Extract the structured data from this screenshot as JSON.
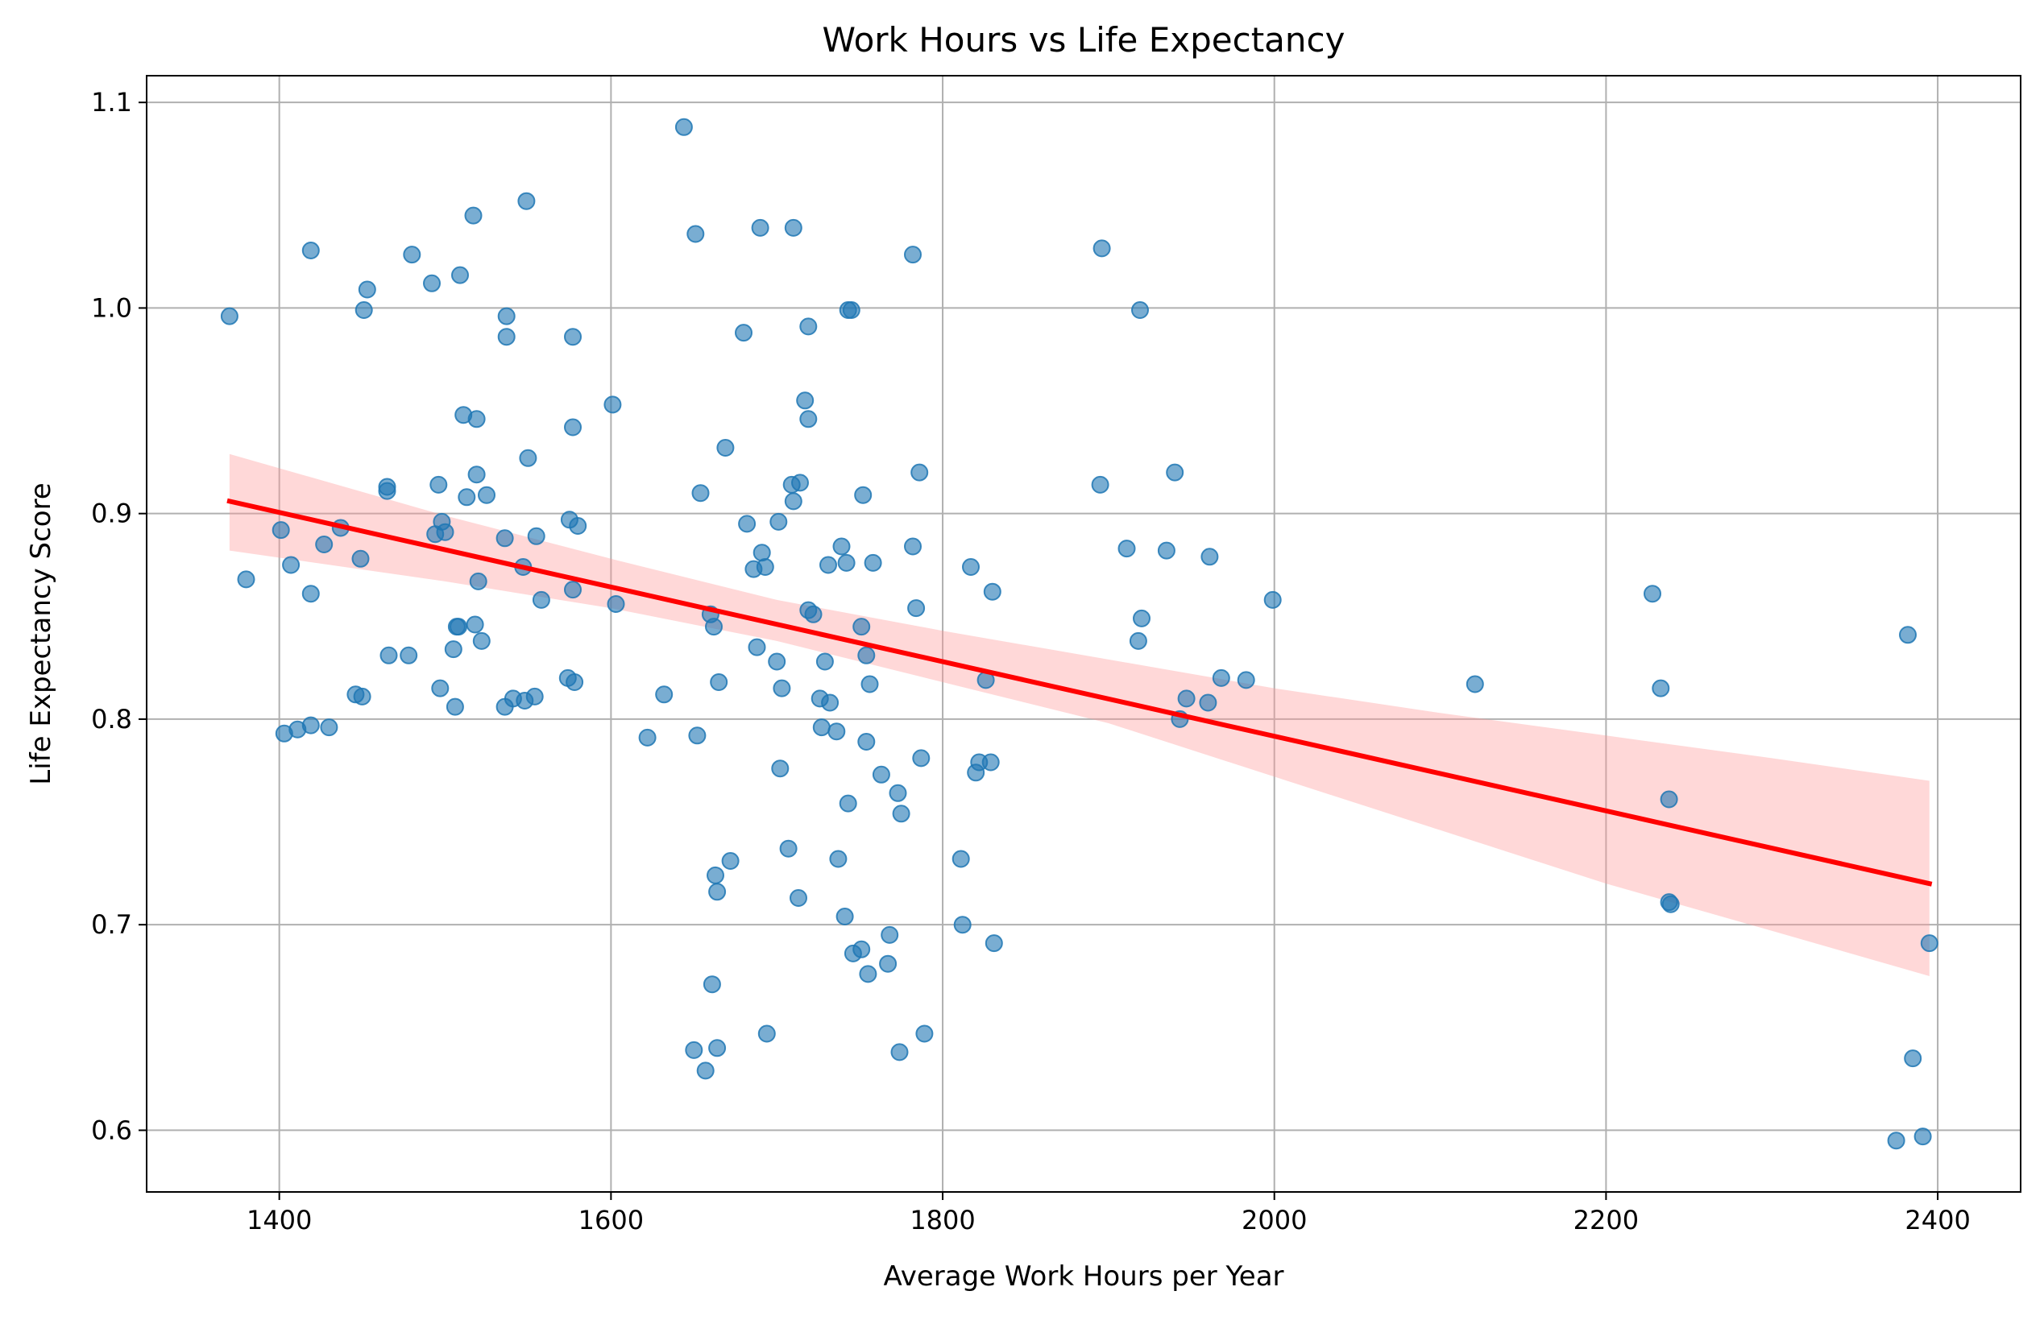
{
  "chart_data": {
    "type": "scatter",
    "title": "Work Hours vs Life Expectancy",
    "xlabel": "Average Work Hours per Year",
    "ylabel": "Life Expectancy Score",
    "xlim": [
      1320,
      2450
    ],
    "ylim": [
      0.57,
      1.113
    ],
    "xticks": [
      1400,
      1600,
      1800,
      2000,
      2200,
      2400
    ],
    "xtick_labels": [
      "1400",
      "1600",
      "1800",
      "2000",
      "2200",
      "2400"
    ],
    "yticks": [
      0.6,
      0.7,
      0.8,
      0.9,
      1.0,
      1.1
    ],
    "ytick_labels": [
      "0.6",
      "0.7",
      "0.8",
      "0.9",
      "1.0",
      "1.1"
    ],
    "grid": true,
    "colors": {
      "points": "#1f77b4",
      "regression_line": "#ff0000",
      "confidence_band": "#ff9999"
    },
    "points": [
      {
        "x": 1370,
        "y": 0.996
      },
      {
        "x": 1380,
        "y": 0.868
      },
      {
        "x": 1401,
        "y": 0.892
      },
      {
        "x": 1403,
        "y": 0.793
      },
      {
        "x": 1407,
        "y": 0.875
      },
      {
        "x": 1411,
        "y": 0.795
      },
      {
        "x": 1419,
        "y": 0.861
      },
      {
        "x": 1419,
        "y": 1.028
      },
      {
        "x": 1419,
        "y": 0.797
      },
      {
        "x": 1427,
        "y": 0.885
      },
      {
        "x": 1430,
        "y": 0.796
      },
      {
        "x": 1437,
        "y": 0.893
      },
      {
        "x": 1446,
        "y": 0.812
      },
      {
        "x": 1449,
        "y": 0.878
      },
      {
        "x": 1450,
        "y": 0.811
      },
      {
        "x": 1451,
        "y": 0.999
      },
      {
        "x": 1453,
        "y": 1.009
      },
      {
        "x": 1465,
        "y": 0.913
      },
      {
        "x": 1465,
        "y": 0.911
      },
      {
        "x": 1466,
        "y": 0.831
      },
      {
        "x": 1478,
        "y": 0.831
      },
      {
        "x": 1480,
        "y": 1.026
      },
      {
        "x": 1492,
        "y": 1.012
      },
      {
        "x": 1494,
        "y": 0.89
      },
      {
        "x": 1496,
        "y": 0.914
      },
      {
        "x": 1497,
        "y": 0.815
      },
      {
        "x": 1498,
        "y": 0.896
      },
      {
        "x": 1500,
        "y": 0.891
      },
      {
        "x": 1505,
        "y": 0.834
      },
      {
        "x": 1506,
        "y": 0.806
      },
      {
        "x": 1507,
        "y": 0.845
      },
      {
        "x": 1508,
        "y": 0.845
      },
      {
        "x": 1509,
        "y": 1.016
      },
      {
        "x": 1511,
        "y": 0.948
      },
      {
        "x": 1513,
        "y": 0.908
      },
      {
        "x": 1517,
        "y": 1.045
      },
      {
        "x": 1518,
        "y": 0.846
      },
      {
        "x": 1519,
        "y": 0.946
      },
      {
        "x": 1519,
        "y": 0.919
      },
      {
        "x": 1520,
        "y": 0.867
      },
      {
        "x": 1522,
        "y": 0.838
      },
      {
        "x": 1525,
        "y": 0.909
      },
      {
        "x": 1536,
        "y": 0.888
      },
      {
        "x": 1536,
        "y": 0.806
      },
      {
        "x": 1537,
        "y": 0.996
      },
      {
        "x": 1537,
        "y": 0.986
      },
      {
        "x": 1541,
        "y": 0.81
      },
      {
        "x": 1547,
        "y": 0.874
      },
      {
        "x": 1548,
        "y": 0.809
      },
      {
        "x": 1549,
        "y": 1.052
      },
      {
        "x": 1550,
        "y": 0.927
      },
      {
        "x": 1554,
        "y": 0.811
      },
      {
        "x": 1555,
        "y": 0.889
      },
      {
        "x": 1558,
        "y": 0.858
      },
      {
        "x": 1574,
        "y": 0.82
      },
      {
        "x": 1575,
        "y": 0.897
      },
      {
        "x": 1577,
        "y": 0.986
      },
      {
        "x": 1577,
        "y": 0.942
      },
      {
        "x": 1577,
        "y": 0.863
      },
      {
        "x": 1578,
        "y": 0.818
      },
      {
        "x": 1580,
        "y": 0.894
      },
      {
        "x": 1601,
        "y": 0.953
      },
      {
        "x": 1603,
        "y": 0.856
      },
      {
        "x": 1622,
        "y": 0.791
      },
      {
        "x": 1632,
        "y": 0.812
      },
      {
        "x": 1644,
        "y": 1.088
      },
      {
        "x": 1650,
        "y": 0.639
      },
      {
        "x": 1651,
        "y": 1.036
      },
      {
        "x": 1652,
        "y": 0.792
      },
      {
        "x": 1654,
        "y": 0.91
      },
      {
        "x": 1657,
        "y": 0.629
      },
      {
        "x": 1660,
        "y": 0.851
      },
      {
        "x": 1661,
        "y": 0.671
      },
      {
        "x": 1662,
        "y": 0.845
      },
      {
        "x": 1663,
        "y": 0.724
      },
      {
        "x": 1664,
        "y": 0.716
      },
      {
        "x": 1664,
        "y": 0.64
      },
      {
        "x": 1665,
        "y": 0.818
      },
      {
        "x": 1669,
        "y": 0.932
      },
      {
        "x": 1672,
        "y": 0.731
      },
      {
        "x": 1680,
        "y": 0.988
      },
      {
        "x": 1682,
        "y": 0.895
      },
      {
        "x": 1686,
        "y": 0.873
      },
      {
        "x": 1688,
        "y": 0.835
      },
      {
        "x": 1690,
        "y": 1.039
      },
      {
        "x": 1691,
        "y": 0.881
      },
      {
        "x": 1693,
        "y": 0.874
      },
      {
        "x": 1694,
        "y": 0.647
      },
      {
        "x": 1700,
        "y": 0.828
      },
      {
        "x": 1701,
        "y": 0.896
      },
      {
        "x": 1702,
        "y": 0.776
      },
      {
        "x": 1703,
        "y": 0.815
      },
      {
        "x": 1707,
        "y": 0.737
      },
      {
        "x": 1709,
        "y": 0.914
      },
      {
        "x": 1710,
        "y": 1.039
      },
      {
        "x": 1710,
        "y": 0.906
      },
      {
        "x": 1713,
        "y": 0.713
      },
      {
        "x": 1714,
        "y": 0.915
      },
      {
        "x": 1717,
        "y": 0.955
      },
      {
        "x": 1719,
        "y": 0.946
      },
      {
        "x": 1719,
        "y": 0.991
      },
      {
        "x": 1719,
        "y": 0.853
      },
      {
        "x": 1722,
        "y": 0.851
      },
      {
        "x": 1726,
        "y": 0.81
      },
      {
        "x": 1727,
        "y": 0.796
      },
      {
        "x": 1729,
        "y": 0.828
      },
      {
        "x": 1731,
        "y": 0.875
      },
      {
        "x": 1732,
        "y": 0.808
      },
      {
        "x": 1736,
        "y": 0.794
      },
      {
        "x": 1737,
        "y": 0.732
      },
      {
        "x": 1739,
        "y": 0.884
      },
      {
        "x": 1741,
        "y": 0.704
      },
      {
        "x": 1742,
        "y": 0.876
      },
      {
        "x": 1743,
        "y": 0.759
      },
      {
        "x": 1743,
        "y": 0.999
      },
      {
        "x": 1745,
        "y": 0.999
      },
      {
        "x": 1746,
        "y": 0.686
      },
      {
        "x": 1751,
        "y": 0.688
      },
      {
        "x": 1751,
        "y": 0.845
      },
      {
        "x": 1752,
        "y": 0.909
      },
      {
        "x": 1754,
        "y": 0.789
      },
      {
        "x": 1754,
        "y": 0.831
      },
      {
        "x": 1755,
        "y": 0.676
      },
      {
        "x": 1756,
        "y": 0.817
      },
      {
        "x": 1758,
        "y": 0.876
      },
      {
        "x": 1763,
        "y": 0.773
      },
      {
        "x": 1767,
        "y": 0.681
      },
      {
        "x": 1768,
        "y": 0.695
      },
      {
        "x": 1773,
        "y": 0.764
      },
      {
        "x": 1774,
        "y": 0.638
      },
      {
        "x": 1775,
        "y": 0.754
      },
      {
        "x": 1782,
        "y": 1.026
      },
      {
        "x": 1782,
        "y": 0.884
      },
      {
        "x": 1784,
        "y": 0.854
      },
      {
        "x": 1786,
        "y": 0.92
      },
      {
        "x": 1787,
        "y": 0.781
      },
      {
        "x": 1789,
        "y": 0.647
      },
      {
        "x": 1811,
        "y": 0.732
      },
      {
        "x": 1812,
        "y": 0.7
      },
      {
        "x": 1817,
        "y": 0.874
      },
      {
        "x": 1820,
        "y": 0.774
      },
      {
        "x": 1822,
        "y": 0.779
      },
      {
        "x": 1826,
        "y": 0.819
      },
      {
        "x": 1829,
        "y": 0.779
      },
      {
        "x": 1830,
        "y": 0.862
      },
      {
        "x": 1831,
        "y": 0.691
      },
      {
        "x": 1895,
        "y": 0.914
      },
      {
        "x": 1896,
        "y": 1.029
      },
      {
        "x": 1911,
        "y": 0.883
      },
      {
        "x": 1918,
        "y": 0.838
      },
      {
        "x": 1919,
        "y": 0.999
      },
      {
        "x": 1920,
        "y": 0.849
      },
      {
        "x": 1935,
        "y": 0.882
      },
      {
        "x": 1940,
        "y": 0.92
      },
      {
        "x": 1943,
        "y": 0.8
      },
      {
        "x": 1947,
        "y": 0.81
      },
      {
        "x": 1960,
        "y": 0.808
      },
      {
        "x": 1961,
        "y": 0.879
      },
      {
        "x": 1968,
        "y": 0.82
      },
      {
        "x": 1983,
        "y": 0.819
      },
      {
        "x": 1999,
        "y": 0.858
      },
      {
        "x": 2121,
        "y": 0.817
      },
      {
        "x": 2228,
        "y": 0.861
      },
      {
        "x": 2233,
        "y": 0.815
      },
      {
        "x": 2238,
        "y": 0.761
      },
      {
        "x": 2238,
        "y": 0.711
      },
      {
        "x": 2239,
        "y": 0.71
      },
      {
        "x": 2375,
        "y": 0.595
      },
      {
        "x": 2382,
        "y": 0.841
      },
      {
        "x": 2385,
        "y": 0.635
      },
      {
        "x": 2391,
        "y": 0.597
      },
      {
        "x": 2395,
        "y": 0.691
      }
    ],
    "regression_line": {
      "x": [
        1370,
        2395
      ],
      "y": [
        0.906,
        0.72
      ]
    },
    "confidence_band": {
      "x": [
        1370,
        1500,
        1600,
        1700,
        1800,
        1900,
        2000,
        2100,
        2200,
        2300,
        2395
      ],
      "upper": [
        0.929,
        0.899,
        0.878,
        0.858,
        0.843,
        0.829,
        0.815,
        0.803,
        0.792,
        0.781,
        0.77
      ],
      "lower": [
        0.882,
        0.867,
        0.854,
        0.838,
        0.818,
        0.798,
        0.772,
        0.746,
        0.72,
        0.697,
        0.675
      ]
    }
  }
}
